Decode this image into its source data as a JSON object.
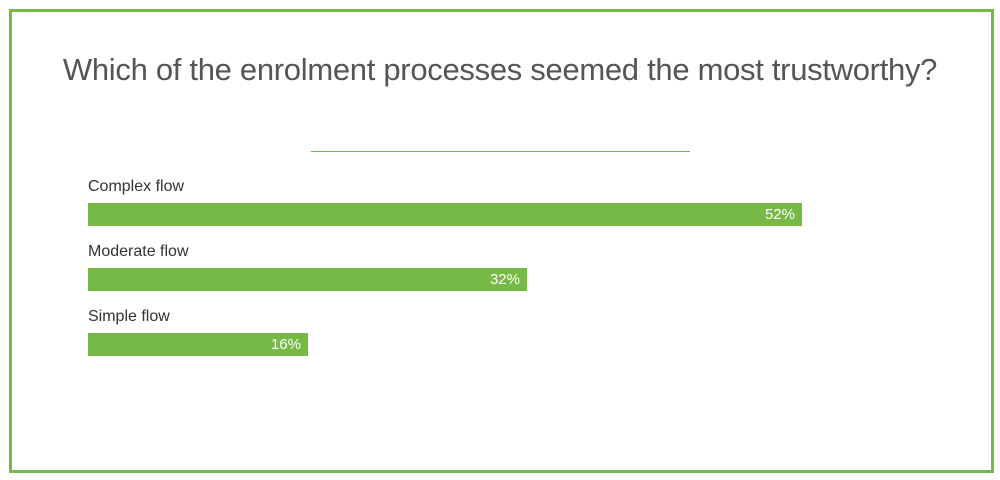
{
  "chart_data": {
    "type": "bar",
    "orientation": "horizontal",
    "title": "Which of the enrolment processes seemed the most trustworthy?",
    "categories": [
      "Complex flow",
      "Moderate flow",
      "Simple flow"
    ],
    "values": [
      52,
      32,
      16
    ],
    "value_labels": [
      "52%",
      "32%",
      "16%"
    ],
    "unit": "%",
    "xlim": [
      0,
      60
    ],
    "grid": false,
    "legend": "none",
    "colors": {
      "bar": "#76b947",
      "frame": "#76b947",
      "title": "#555555",
      "value_text": "#ffffff"
    }
  }
}
